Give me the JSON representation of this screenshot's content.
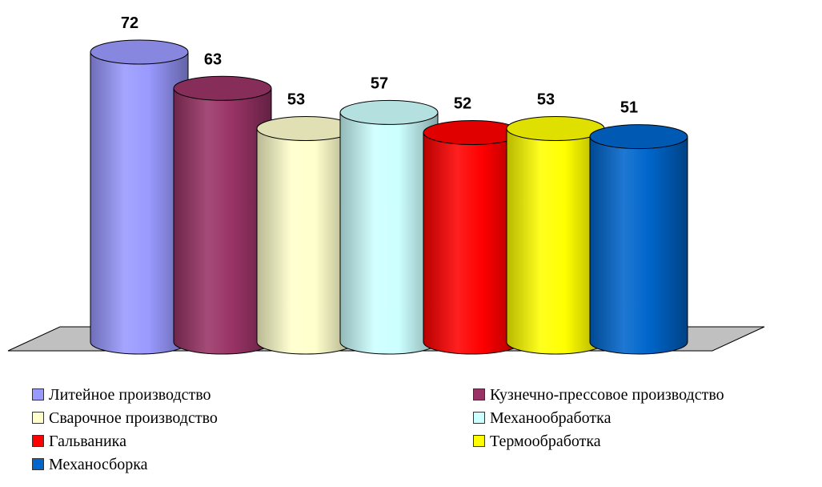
{
  "chart_data": {
    "type": "bar",
    "style": "3d-cylinder",
    "categories": [
      "Литейное производство",
      "Кузнечно-прессовое производство",
      "Сварочное производство",
      "Механообработка",
      "Гальваника",
      "Термообработка",
      "Механосборка"
    ],
    "series": [
      {
        "values": [
          72,
          63,
          53,
          57,
          52,
          53,
          51
        ],
        "colors": [
          "#9999ff",
          "#993366",
          "#ffffcc",
          "#ccffff",
          "#ff0000",
          "#ffff00",
          "#0066cc"
        ]
      }
    ],
    "data_labels": [
      "72",
      "63",
      "53",
      "57",
      "52",
      "53",
      "51"
    ],
    "ylim": [
      0,
      72
    ],
    "grid": false,
    "legend_position": "bottom"
  }
}
